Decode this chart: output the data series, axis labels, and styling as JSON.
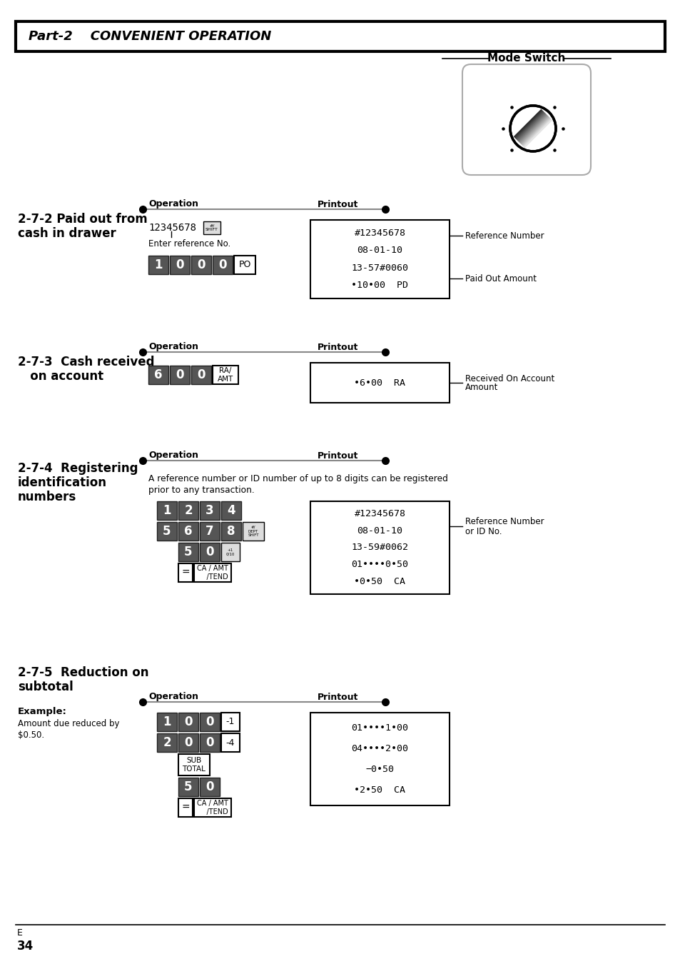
{
  "bg_color": "#ffffff",
  "title_text": "Part-2    CONVENIENT OPERATION",
  "page_number": "34",
  "page_letter": "E",
  "mode_switch_label": "Mode Switch",
  "sec272_title_lines": [
    "2-7-2 Paid out from",
    "cash in drawer"
  ],
  "sec272_op_text": "12345678",
  "sec272_enter_text": "Enter reference No.",
  "sec272_num_keys": [
    "1",
    "0",
    "0",
    "0"
  ],
  "sec272_po_key": "PO",
  "sec272_printout": [
    "#12345678",
    "08-01-10",
    "13-57#0060",
    "•10•00  PD"
  ],
  "sec272_label1": "Reference Number",
  "sec272_label2": "Paid Out Amount",
  "sec273_title_lines": [
    "2-7-3  Cash received",
    "   on account"
  ],
  "sec273_num_keys": [
    "6",
    "0",
    "0"
  ],
  "sec273_ra_key": "RA/\nAMT",
  "sec273_printout": [
    "•6•00  RA"
  ],
  "sec273_label1": "Received On Account",
  "sec273_label2": "Amount",
  "sec274_title_lines": [
    "2-7-4  Registering",
    "identification",
    "numbers"
  ],
  "sec274_desc1": "A reference number or ID number of up to 8 digits can be registered",
  "sec274_desc2": "prior to any transaction.",
  "sec274_row1": [
    "1",
    "2",
    "3",
    "4"
  ],
  "sec274_row2": [
    "5",
    "6",
    "7",
    "8"
  ],
  "sec274_shift_label": "#/\nDEPT\nSHIFT",
  "sec274_row3": [
    "5",
    "0"
  ],
  "sec274_plus1": "+1\n0/10",
  "sec274_ca_key": "CA / AMT\n= /TEND",
  "sec274_printout": [
    "#12345678",
    "08-01-10",
    "13-59#0062",
    "01••••0•50",
    "•0•50  CA"
  ],
  "sec274_label1": "Reference Number",
  "sec274_label2": "or ID No.",
  "sec275_title_lines": [
    "2-7-5  Reduction on",
    "subtotal"
  ],
  "sec275_example": [
    "Example:",
    "Amount due reduced by",
    "$0.50."
  ],
  "sec275_row1_num": [
    "1",
    "0",
    "0"
  ],
  "sec275_key_m1": "-1",
  "sec275_row2_num": [
    "2",
    "0",
    "0"
  ],
  "sec275_key_m4": "-4",
  "sec275_sub_key": "SUB\nTOTAL",
  "sec275_row4": [
    "5",
    "0"
  ],
  "sec275_ca_key": "CA / AMT\n= /TEND",
  "sec275_printout": [
    "01••••1•00",
    "04••••2•00",
    "−0•50",
    "•2•50  CA"
  ]
}
